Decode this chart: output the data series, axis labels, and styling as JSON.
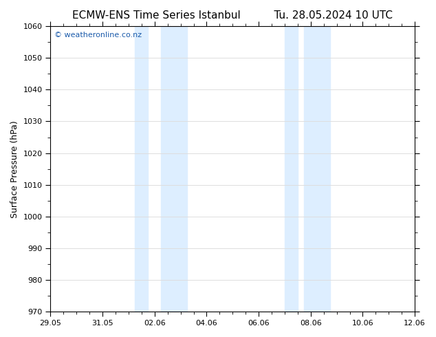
{
  "title": "ECMW-ENS Time Series Istanbul",
  "title_right": "Tu. 28.05.2024 10 UTC",
  "ylabel": "Surface Pressure (hPa)",
  "ylim": [
    970,
    1060
  ],
  "yticks": [
    970,
    980,
    990,
    1000,
    1010,
    1020,
    1030,
    1040,
    1050,
    1060
  ],
  "xlim": [
    0,
    14
  ],
  "xtick_labels": [
    "29.05",
    "31.05",
    "02.06",
    "04.06",
    "06.06",
    "08.06",
    "10.06",
    "12.06"
  ],
  "xtick_positions": [
    0,
    2,
    4,
    6,
    8,
    10,
    12,
    14
  ],
  "shade_bands": [
    {
      "x_start": 3.25,
      "x_end": 3.75
    },
    {
      "x_start": 4.25,
      "x_end": 5.25
    },
    {
      "x_start": 9.0,
      "x_end": 9.5
    },
    {
      "x_start": 9.75,
      "x_end": 10.75
    }
  ],
  "shade_color": "#ddeeff",
  "background_color": "#ffffff",
  "plot_bg_color": "#ffffff",
  "watermark_text": "© weatheronline.co.nz",
  "watermark_color": "#1a5aaa",
  "watermark_fontsize": 8,
  "title_fontsize": 11,
  "ylabel_fontsize": 9,
  "tick_fontsize": 8,
  "grid_color": "#dddddd",
  "border_color": "#000000",
  "minor_tick_interval": 0.5
}
